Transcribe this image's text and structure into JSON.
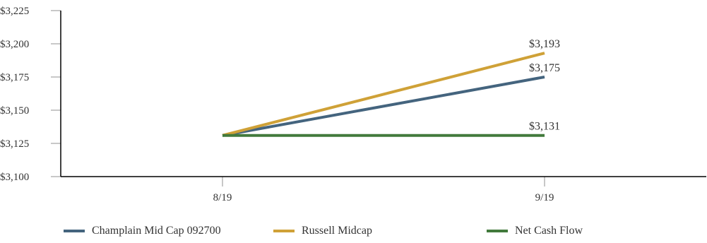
{
  "chart_data": {
    "type": "line",
    "categories": [
      "8/19",
      "9/19"
    ],
    "series": [
      {
        "name": "Champlain Mid Cap 092700",
        "color": "#44647e",
        "values": [
          3131,
          3175
        ],
        "end_label": "$3,175"
      },
      {
        "name": "Russell Midcap",
        "color": "#cfa137",
        "values": [
          3131,
          3193
        ],
        "end_label": "$3,193"
      },
      {
        "name": "Net Cash Flow",
        "color": "#427a3c",
        "values": [
          3131,
          3131
        ],
        "end_label": "$3,131"
      }
    ],
    "y_ticks": [
      {
        "value": 3100,
        "label": "$3,100"
      },
      {
        "value": 3125,
        "label": "$3,125"
      },
      {
        "value": 3150,
        "label": "$3,150"
      },
      {
        "value": 3175,
        "label": "$3,175"
      },
      {
        "value": 3200,
        "label": "$3,200"
      },
      {
        "value": 3225,
        "label": "$3,225"
      }
    ],
    "ylim": [
      3100,
      3225
    ],
    "grid": false,
    "legend_position": "bottom",
    "axis_color": "#000000",
    "tick_color": "#c8c8c8"
  }
}
